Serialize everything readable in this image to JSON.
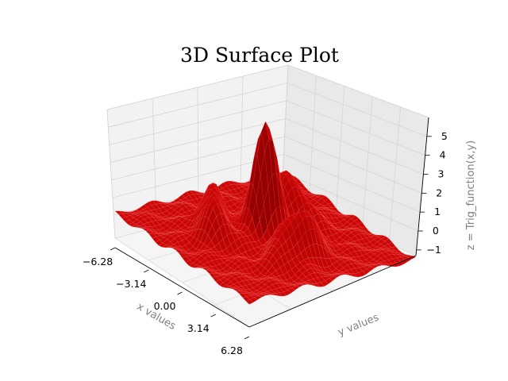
{
  "chart_data": {
    "type": "surface",
    "title": "3D Surface Plot",
    "xlabel": "x values",
    "ylabel": "y values",
    "zlabel": "z = Trig_function(x,y)",
    "x_ticks": [
      "−6.28",
      "−3.14",
      "0.00",
      "3.14",
      "6.28"
    ],
    "z_ticks": [
      "−1",
      "0",
      "1",
      "2",
      "3",
      "4",
      "5"
    ],
    "xlim": [
      -6.28,
      6.28
    ],
    "ylim": [
      -6.28,
      6.28
    ],
    "zlim": [
      -1.3,
      6.0
    ],
    "z_peak": 6.0,
    "z_min": -0.8,
    "surface_color": "#ff0000",
    "grid": true
  }
}
